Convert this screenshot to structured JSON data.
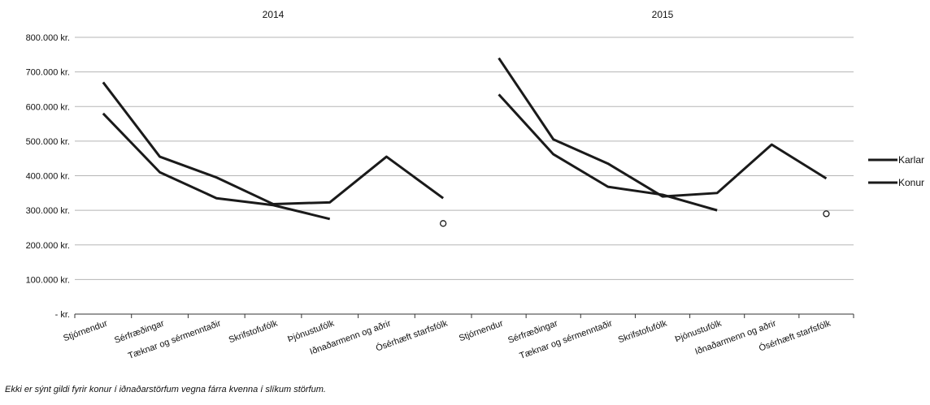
{
  "chart_data": {
    "type": "line",
    "y_tick_labels": [
      "- kr.",
      "100.000 kr.",
      "200.000 kr.",
      "300.000 kr.",
      "400.000 kr.",
      "500.000 kr.",
      "600.000 kr.",
      "700.000 kr.",
      "800.000 kr."
    ],
    "ylim": [
      0,
      800000
    ],
    "grid": true,
    "legend_position": "right",
    "categories": [
      "Stjórnendur",
      "Sérfræðingar",
      "Tæknar og sérmenntaðir",
      "Skrifstofufólk",
      "Þjónustufólk",
      "Iðnaðarmenn og aðrir",
      "Ósérhæft starfsfólk"
    ],
    "panels": [
      {
        "title": "2014",
        "series": [
          {
            "name": "Karlar",
            "values": [
              670000,
              455000,
              395000,
              318000,
              323000,
              455000,
              335000
            ]
          },
          {
            "name": "Konur",
            "values": [
              580000,
              410000,
              335000,
              315000,
              275000,
              null,
              262000
            ]
          }
        ]
      },
      {
        "title": "2015",
        "series": [
          {
            "name": "Karlar",
            "values": [
              740000,
              505000,
              435000,
              340000,
              350000,
              490000,
              392000
            ]
          },
          {
            "name": "Konur",
            "values": [
              635000,
              462000,
              368000,
              345000,
              300000,
              null,
              290000
            ]
          }
        ]
      }
    ],
    "legend": [
      "Karlar",
      "Konur"
    ]
  },
  "footnote": "Ekki er sýnt gildi fyrir konur í iðnaðarstörfum vegna fárra kvenna í slíkum störfum."
}
